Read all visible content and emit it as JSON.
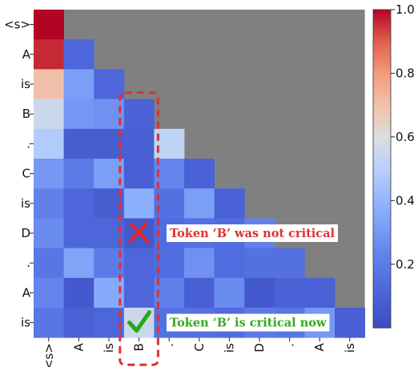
{
  "chart_data": {
    "type": "heatmap",
    "title": "",
    "xlabel": "",
    "ylabel": "",
    "row_labels": [
      "<s>",
      "A",
      "is",
      "B",
      ".",
      "C",
      "is",
      "D",
      ".",
      "A",
      "is"
    ],
    "col_labels": [
      "<s>",
      "A",
      "is",
      "B",
      ".",
      "C",
      "is",
      "D",
      ".",
      "A",
      "is"
    ],
    "mask": "upper-triangle (causal), shown in gray",
    "mask_color": "#808080",
    "colormap": "coolwarm",
    "color_range": [
      0.0,
      1.0
    ],
    "colorbar_ticks": [
      "1.0",
      "0.8",
      "0.6",
      "0.4",
      "0.2"
    ],
    "colorbar_tick_values": [
      1.0,
      0.8,
      0.6,
      0.4,
      0.2
    ],
    "values": [
      [
        1.0
      ],
      [
        0.96,
        0.12
      ],
      [
        0.7,
        0.32,
        0.12
      ],
      [
        0.55,
        0.3,
        0.28,
        0.1
      ],
      [
        0.48,
        0.08,
        0.08,
        0.09,
        0.52
      ],
      [
        0.3,
        0.2,
        0.32,
        0.09,
        0.24,
        0.1
      ],
      [
        0.22,
        0.12,
        0.08,
        0.38,
        0.16,
        0.32,
        0.1
      ],
      [
        0.26,
        0.12,
        0.12,
        0.06,
        0.14,
        0.16,
        0.14,
        0.22
      ],
      [
        0.18,
        0.34,
        0.2,
        0.12,
        0.14,
        0.28,
        0.14,
        0.16,
        0.16
      ],
      [
        0.24,
        0.06,
        0.36,
        0.12,
        0.22,
        0.09,
        0.26,
        0.06,
        0.1,
        0.1
      ],
      [
        0.18,
        0.1,
        0.12,
        0.55,
        0.16,
        0.16,
        0.14,
        0.2,
        0.18,
        0.3,
        0.09
      ]
    ],
    "highlight_column": "B",
    "annotations": [
      {
        "row": 7,
        "col": 3,
        "mark": "cross",
        "text": "Token ‘B’ was not critical",
        "text_color": "#e03030"
      },
      {
        "row": 10,
        "col": 3,
        "mark": "check",
        "text": "Token ‘B’ is critical now",
        "text_color": "#33aa22"
      }
    ],
    "annotation_box_color": "#e03030"
  }
}
